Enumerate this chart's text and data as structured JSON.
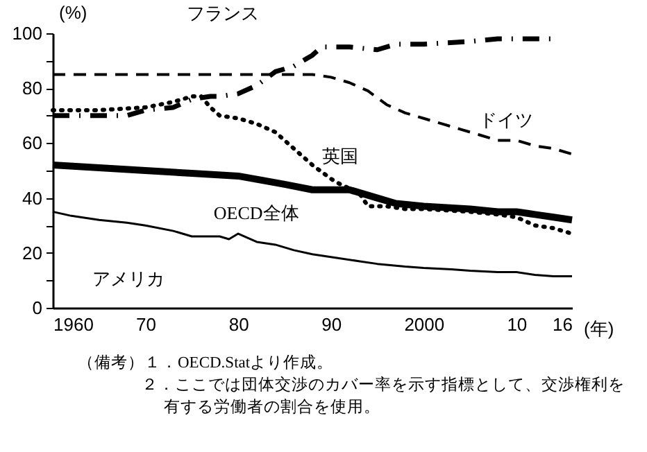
{
  "chart_data": {
    "type": "line",
    "ylabel": "(%)",
    "xlabel": "(年)",
    "xlim": [
      1960,
      2016
    ],
    "ylim": [
      0,
      100
    ],
    "xticks": [
      1960,
      {
        "value": 1970,
        "label": "70"
      },
      {
        "value": 1980,
        "label": "80"
      },
      {
        "value": 1990,
        "label": "90"
      },
      2000,
      {
        "value": 2010,
        "label": "10"
      },
      {
        "value": 2016,
        "label": "16"
      }
    ],
    "yticks": [
      0,
      {
        "value": 10,
        "label": null
      },
      20,
      {
        "value": 30,
        "label": null
      },
      40,
      {
        "value": 50,
        "label": null
      },
      60,
      {
        "value": 70,
        "label": null
      },
      80,
      {
        "value": 90,
        "label": null
      },
      100
    ],
    "grid": false,
    "legend": false,
    "marker": "none",
    "series": [
      {
        "name": "OECD全体",
        "color": "#000000",
        "line_style": "solid",
        "x": [
          1960,
          1965,
          1970,
          1975,
          1980,
          1985,
          1988,
          1990,
          1992,
          1995,
          1997,
          2000,
          2005,
          2008,
          2010,
          2012,
          2014,
          2016
        ],
        "values": [
          52,
          51,
          50,
          49,
          48,
          45,
          43,
          43,
          43,
          40,
          38,
          37,
          36,
          35,
          35,
          34,
          33,
          32
        ]
      },
      {
        "name": "アメリカ",
        "color": "#000000",
        "line_style": "solid",
        "x": [
          1960,
          1962,
          1965,
          1968,
          1970,
          1973,
          1975,
          1978,
          1979,
          1980,
          1982,
          1984,
          1986,
          1988,
          1990,
          1993,
          1995,
          1998,
          2000,
          2003,
          2005,
          2008,
          2010,
          2012,
          2014,
          2016
        ],
        "values": [
          35,
          33.5,
          32,
          31,
          30,
          28,
          26,
          26,
          25,
          27,
          24,
          23,
          21,
          19.5,
          18.5,
          17,
          16,
          15,
          14.5,
          14,
          13.5,
          13,
          13,
          12,
          11.5,
          11.5
        ]
      },
      {
        "name": "英国",
        "color": "#000000",
        "line_style": "dotted",
        "x": [
          1960,
          1965,
          1970,
          1973,
          1975,
          1976,
          1977,
          1978,
          1980,
          1982,
          1984,
          1986,
          1988,
          1990,
          1991,
          1993,
          1994,
          1996,
          1998,
          2000,
          2005,
          2008,
          2010,
          2012,
          2014,
          2016
        ],
        "values": [
          72,
          72,
          73,
          75,
          77,
          77,
          73,
          70,
          69,
          67,
          64,
          58,
          52,
          47,
          45,
          42,
          37,
          37,
          36,
          36,
          35,
          34,
          33,
          30,
          29,
          27
        ]
      },
      {
        "name": "ドイツ",
        "color": "#000000",
        "line_style": "dashed",
        "x": [
          1960,
          1988,
          1990,
          1992,
          1994,
          1996,
          1998,
          2000,
          2002,
          2004,
          2006,
          2008,
          2010,
          2012,
          2014,
          2016
        ],
        "values": [
          85,
          85,
          84,
          82,
          79,
          74,
          71,
          69,
          67,
          65,
          63,
          61,
          61,
          59,
          58,
          56
        ]
      },
      {
        "name": "フランス",
        "color": "#000000",
        "line_style": "dashdot",
        "x": [
          1960,
          1968,
          1970,
          1973,
          1975,
          1977,
          1978,
          1980,
          1982,
          1984,
          1986,
          1988,
          1989,
          1990,
          1992,
          1995,
          1997,
          2000,
          2005,
          2008,
          2010,
          2012,
          2014
        ],
        "values": [
          70,
          70,
          72,
          73,
          76,
          77,
          77,
          78,
          81,
          86,
          88,
          92,
          95,
          95,
          95,
          94,
          96,
          96,
          97,
          98,
          98,
          98,
          98
        ]
      }
    ],
    "annotations": [
      "（備考）１．OECD.Statより作成。",
      "２．ここでは団体交渉のカバー率を示す指標として、交渉権利を有する労働者の割合を使用。"
    ]
  }
}
